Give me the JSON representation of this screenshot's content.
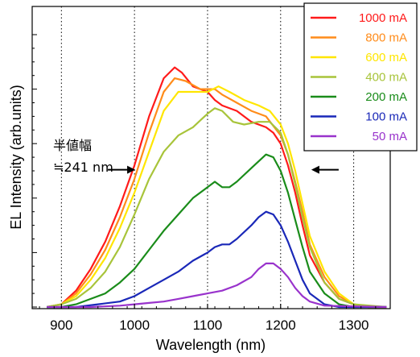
{
  "chart_data": {
    "type": "line",
    "title": "",
    "xlabel": "Wavelength (nm)",
    "ylabel": "EL Intensity (arb.units)",
    "xlim": [
      860,
      1350
    ],
    "ylim": [
      0,
      1.0
    ],
    "x_ticks": [
      900,
      1000,
      1100,
      1200,
      1300
    ],
    "grid": "vertical dotted at x ticks",
    "legend_position": "top-right (outside frame)",
    "annotation": {
      "lines": [
        "半値幅",
        "≒241 nm"
      ],
      "fwhm_nm": 241,
      "arrow_left_x": 1001,
      "arrow_right_x": 1242,
      "arrow_y": 0.504
    },
    "series": [
      {
        "name": "1000 mA",
        "color": "#ff1a1a",
        "x": [
          880,
          900,
          920,
          940,
          960,
          980,
          1000,
          1020,
          1040,
          1055,
          1065,
          1080,
          1100,
          1110,
          1120,
          1140,
          1160,
          1180,
          1190,
          1200,
          1210,
          1220,
          1230,
          1240,
          1260,
          1280,
          1300,
          1320,
          1345
        ],
        "y": [
          0.0,
          0.01,
          0.06,
          0.14,
          0.24,
          0.37,
          0.52,
          0.7,
          0.84,
          0.88,
          0.86,
          0.81,
          0.79,
          0.76,
          0.74,
          0.72,
          0.68,
          0.66,
          0.64,
          0.6,
          0.52,
          0.42,
          0.3,
          0.19,
          0.09,
          0.03,
          0.01,
          0.0,
          0.0
        ]
      },
      {
        "name": "800 mA",
        "color": "#ff8c1a",
        "x": [
          880,
          900,
          920,
          940,
          960,
          980,
          1000,
          1020,
          1040,
          1055,
          1070,
          1090,
          1110,
          1120,
          1140,
          1160,
          1180,
          1200,
          1210,
          1220,
          1230,
          1240,
          1260,
          1280,
          1300,
          1320,
          1345
        ],
        "y": [
          0.0,
          0.01,
          0.05,
          0.12,
          0.21,
          0.33,
          0.47,
          0.64,
          0.79,
          0.84,
          0.83,
          0.8,
          0.8,
          0.78,
          0.75,
          0.72,
          0.7,
          0.63,
          0.56,
          0.46,
          0.35,
          0.23,
          0.11,
          0.04,
          0.01,
          0.0,
          0.0
        ]
      },
      {
        "name": "600 mA",
        "color": "#ffe600",
        "x": [
          880,
          900,
          920,
          940,
          960,
          980,
          1000,
          1020,
          1040,
          1060,
          1080,
          1100,
          1115,
          1130,
          1150,
          1170,
          1185,
          1200,
          1210,
          1220,
          1230,
          1240,
          1260,
          1280,
          1300,
          1320,
          1345
        ],
        "y": [
          0.0,
          0.01,
          0.04,
          0.1,
          0.18,
          0.29,
          0.42,
          0.57,
          0.72,
          0.79,
          0.79,
          0.79,
          0.81,
          0.79,
          0.76,
          0.74,
          0.72,
          0.67,
          0.6,
          0.5,
          0.38,
          0.26,
          0.13,
          0.05,
          0.01,
          0.0,
          0.0
        ]
      },
      {
        "name": "400 mA",
        "color": "#a8c43a",
        "x": [
          880,
          900,
          920,
          940,
          960,
          980,
          1000,
          1020,
          1040,
          1060,
          1080,
          1100,
          1110,
          1120,
          1135,
          1150,
          1170,
          1185,
          1200,
          1210,
          1220,
          1230,
          1240,
          1260,
          1280,
          1300,
          1345
        ],
        "y": [
          0.0,
          0.01,
          0.03,
          0.07,
          0.13,
          0.22,
          0.34,
          0.47,
          0.57,
          0.63,
          0.66,
          0.71,
          0.73,
          0.72,
          0.68,
          0.67,
          0.68,
          0.68,
          0.64,
          0.56,
          0.45,
          0.33,
          0.22,
          0.09,
          0.03,
          0.01,
          0.0
        ]
      },
      {
        "name": "200 mA",
        "color": "#1a8c1a",
        "x": [
          880,
          900,
          920,
          940,
          960,
          980,
          1000,
          1020,
          1040,
          1060,
          1080,
          1100,
          1110,
          1120,
          1130,
          1140,
          1160,
          1180,
          1190,
          1200,
          1210,
          1220,
          1230,
          1240,
          1260,
          1280,
          1300,
          1345
        ],
        "y": [
          0.0,
          0.0,
          0.01,
          0.03,
          0.05,
          0.09,
          0.14,
          0.21,
          0.28,
          0.34,
          0.4,
          0.44,
          0.46,
          0.44,
          0.44,
          0.46,
          0.51,
          0.56,
          0.55,
          0.5,
          0.42,
          0.32,
          0.22,
          0.13,
          0.05,
          0.01,
          0.0,
          0.0
        ]
      },
      {
        "name": "100 mA",
        "color": "#1a28b8",
        "x": [
          880,
          920,
          950,
          980,
          1000,
          1020,
          1040,
          1060,
          1080,
          1100,
          1110,
          1120,
          1130,
          1140,
          1160,
          1170,
          1180,
          1190,
          1200,
          1210,
          1220,
          1230,
          1240,
          1260,
          1280,
          1345
        ],
        "y": [
          0.0,
          0.0,
          0.01,
          0.02,
          0.04,
          0.07,
          0.1,
          0.13,
          0.17,
          0.2,
          0.22,
          0.23,
          0.23,
          0.25,
          0.3,
          0.33,
          0.35,
          0.34,
          0.3,
          0.24,
          0.17,
          0.1,
          0.05,
          0.01,
          0.0,
          0.0
        ]
      },
      {
        "name": "50 mA",
        "color": "#9933cc",
        "x": [
          880,
          940,
          980,
          1000,
          1020,
          1040,
          1060,
          1080,
          1100,
          1120,
          1140,
          1160,
          1170,
          1180,
          1190,
          1200,
          1210,
          1220,
          1230,
          1240,
          1260,
          1345
        ],
        "y": [
          0.0,
          0.0,
          0.005,
          0.01,
          0.015,
          0.02,
          0.03,
          0.04,
          0.05,
          0.06,
          0.08,
          0.11,
          0.14,
          0.16,
          0.16,
          0.14,
          0.11,
          0.07,
          0.04,
          0.02,
          0.005,
          0.0
        ]
      }
    ]
  }
}
